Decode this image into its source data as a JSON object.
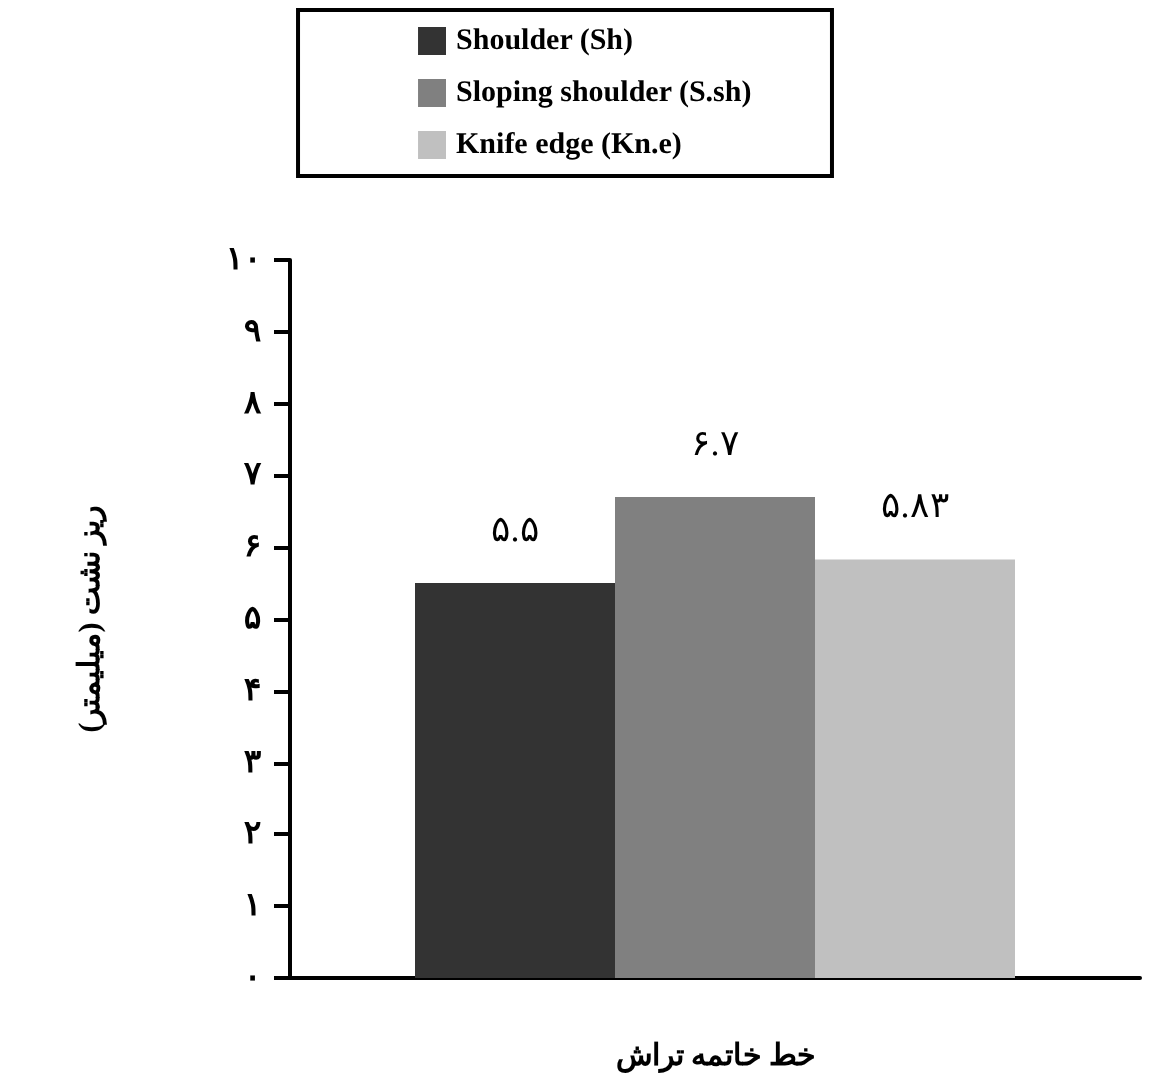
{
  "chart_data": {
    "type": "bar",
    "categories": [
      null
    ],
    "series": [
      {
        "name": "Shoulder (Sh)",
        "color": "#333333",
        "values": [
          5.5
        ],
        "value_labels": [
          "۵.۵"
        ]
      },
      {
        "name": "Sloping shoulder (S.sh)",
        "color": "#808080",
        "values": [
          6.7
        ],
        "value_labels": [
          "۶.۷"
        ]
      },
      {
        "name": "Knife edge (Kn.e)",
        "color": "#c0c0c0",
        "values": [
          5.83
        ],
        "value_labels": [
          "۵.۸۳"
        ]
      }
    ],
    "xlabel": "خط خاتمه تراش",
    "ylabel": "ریز نشت (میلیمتر)",
    "ylim": [
      0,
      10
    ],
    "yticks": [
      {
        "value": 0,
        "label": "۰"
      },
      {
        "value": 1,
        "label": "۱"
      },
      {
        "value": 2,
        "label": "۲"
      },
      {
        "value": 3,
        "label": "۳"
      },
      {
        "value": 4,
        "label": "۴"
      },
      {
        "value": 5,
        "label": "۵"
      },
      {
        "value": 6,
        "label": "۶"
      },
      {
        "value": 7,
        "label": "۷"
      },
      {
        "value": 8,
        "label": "۸"
      },
      {
        "value": 9,
        "label": "۹"
      },
      {
        "value": 10,
        "label": "۱۰"
      }
    ],
    "legend": "top",
    "grid": false
  }
}
